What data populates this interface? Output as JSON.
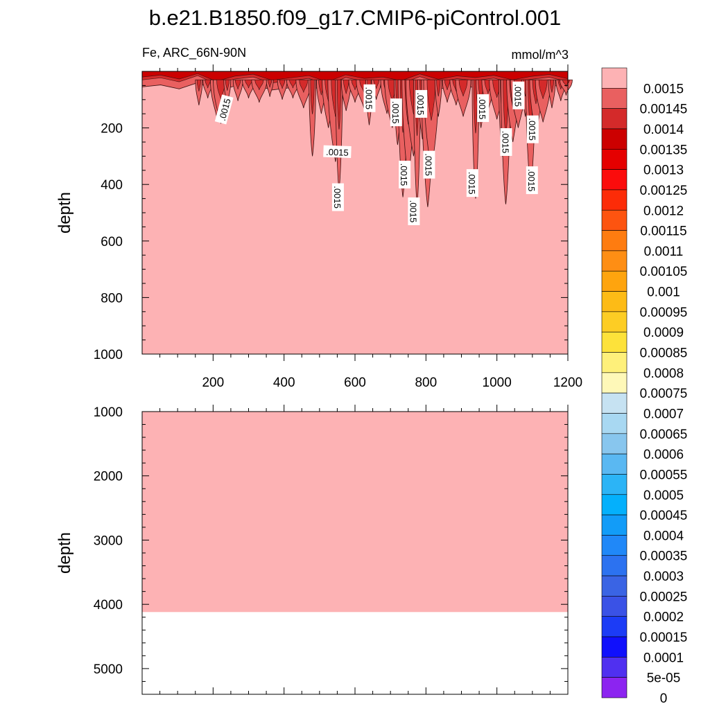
{
  "title": "b.e21.B1850.f09_g17.CMIP6-piControl.001",
  "variable_label": "Fe, ARC_66N-90N",
  "units_label": "mmol/m^3",
  "colors": {
    "fill_background": "#fdb2b4",
    "land_mask": "#ffffff",
    "contour_line": "#3a1010",
    "label_box": "#ffffff"
  },
  "chart_data": [
    {
      "type": "contour",
      "panel": "upper",
      "xlim": [
        0,
        1200
      ],
      "ylim": [
        1000,
        0
      ],
      "y_reversed": true,
      "xticks": [
        200,
        400,
        600,
        800,
        1000,
        1200
      ],
      "yticks": [
        200,
        400,
        600,
        800,
        1000
      ],
      "ylabel": "depth",
      "xlabel": "",
      "background_level": 0.0015,
      "contour_label": ".0015",
      "label_annotations": [
        {
          "x": 232,
          "depth": 135
        },
        {
          "x": 640,
          "depth": 95
        },
        {
          "x": 715,
          "depth": 145
        },
        {
          "x": 786,
          "depth": 115
        },
        {
          "x": 960,
          "depth": 130
        },
        {
          "x": 1060,
          "depth": 85
        },
        {
          "x": 550,
          "depth": 285
        },
        {
          "x": 1025,
          "depth": 250
        },
        {
          "x": 1100,
          "depth": 205
        },
        {
          "x": 808,
          "depth": 330
        },
        {
          "x": 739,
          "depth": 365
        },
        {
          "x": 930,
          "depth": 395
        },
        {
          "x": 1098,
          "depth": 385
        },
        {
          "x": 551,
          "depth": 445
        },
        {
          "x": 765,
          "depth": 495
        }
      ],
      "plumes": [
        {
          "x": 160,
          "depth": 120
        },
        {
          "x": 185,
          "depth": 95
        },
        {
          "x": 210,
          "depth": 160
        },
        {
          "x": 222,
          "depth": 185
        },
        {
          "x": 240,
          "depth": 115
        },
        {
          "x": 270,
          "depth": 105
        },
        {
          "x": 300,
          "depth": 95
        },
        {
          "x": 330,
          "depth": 110
        },
        {
          "x": 360,
          "depth": 90
        },
        {
          "x": 395,
          "depth": 100
        },
        {
          "x": 425,
          "depth": 95
        },
        {
          "x": 455,
          "depth": 130
        },
        {
          "x": 480,
          "depth": 300
        },
        {
          "x": 505,
          "depth": 150
        },
        {
          "x": 525,
          "depth": 200
        },
        {
          "x": 545,
          "depth": 320
        },
        {
          "x": 555,
          "depth": 420
        },
        {
          "x": 575,
          "depth": 140
        },
        {
          "x": 600,
          "depth": 110
        },
        {
          "x": 625,
          "depth": 130
        },
        {
          "x": 640,
          "depth": 190
        },
        {
          "x": 660,
          "depth": 100
        },
        {
          "x": 690,
          "depth": 150
        },
        {
          "x": 705,
          "depth": 200
        },
        {
          "x": 720,
          "depth": 260
        },
        {
          "x": 735,
          "depth": 445
        },
        {
          "x": 750,
          "depth": 380
        },
        {
          "x": 765,
          "depth": 300
        },
        {
          "x": 775,
          "depth": 470
        },
        {
          "x": 790,
          "depth": 240
        },
        {
          "x": 805,
          "depth": 480
        },
        {
          "x": 815,
          "depth": 350
        },
        {
          "x": 835,
          "depth": 160
        },
        {
          "x": 860,
          "depth": 110
        },
        {
          "x": 885,
          "depth": 120
        },
        {
          "x": 905,
          "depth": 160
        },
        {
          "x": 940,
          "depth": 450
        },
        {
          "x": 955,
          "depth": 200
        },
        {
          "x": 975,
          "depth": 140
        },
        {
          "x": 1000,
          "depth": 170
        },
        {
          "x": 1015,
          "depth": 300
        },
        {
          "x": 1025,
          "depth": 470
        },
        {
          "x": 1045,
          "depth": 250
        },
        {
          "x": 1060,
          "depth": 200
        },
        {
          "x": 1080,
          "depth": 160
        },
        {
          "x": 1095,
          "depth": 420
        },
        {
          "x": 1110,
          "depth": 220
        },
        {
          "x": 1130,
          "depth": 180
        },
        {
          "x": 1155,
          "depth": 130
        },
        {
          "x": 1180,
          "depth": 105
        },
        {
          "x": 1195,
          "depth": 85
        }
      ]
    },
    {
      "type": "contour",
      "panel": "lower",
      "xlim": [
        0,
        1200
      ],
      "ylim": [
        5400,
        1000
      ],
      "y_reversed": true,
      "yticks": [
        1000,
        2000,
        3000,
        4000,
        5000
      ],
      "ylabel": "depth",
      "xlabel": "",
      "background_level": 0.0015,
      "data_bottom_depth": 4120
    }
  ],
  "colorbar": {
    "levels": [
      "0.0015",
      "0.00145",
      "0.0014",
      "0.00135",
      "0.0013",
      "0.00125",
      "0.0012",
      "0.00115",
      "0.0011",
      "0.00105",
      "0.001",
      "0.00095",
      "0.0009",
      "0.00085",
      "0.0008",
      "0.00075",
      "0.0007",
      "0.00065",
      "0.0006",
      "0.00055",
      "0.0005",
      "0.00045",
      "0.0004",
      "0.00035",
      "0.0003",
      "0.00025",
      "0.0002",
      "0.00015",
      "0.0001",
      "5e-05",
      "0"
    ],
    "colors": [
      "#fdb2b4",
      "#e96060",
      "#d42a2a",
      "#cc0000",
      "#e50000",
      "#fb0c0c",
      "#fc2c08",
      "#fd5410",
      "#fe7c10",
      "#fe8e14",
      "#fea40e",
      "#fdbb16",
      "#fdcd24",
      "#fde23a",
      "#fef07a",
      "#fef8b8",
      "#c6e2f2",
      "#a8d8f2",
      "#88c6ee",
      "#5ab8f2",
      "#2cb4f6",
      "#04b0fc",
      "#129cf8",
      "#2088f8",
      "#2c72f0",
      "#3a64e4",
      "#3a52e6",
      "#1c3cf6",
      "#1010fc",
      "#5030f0",
      "#8c24f0"
    ]
  }
}
